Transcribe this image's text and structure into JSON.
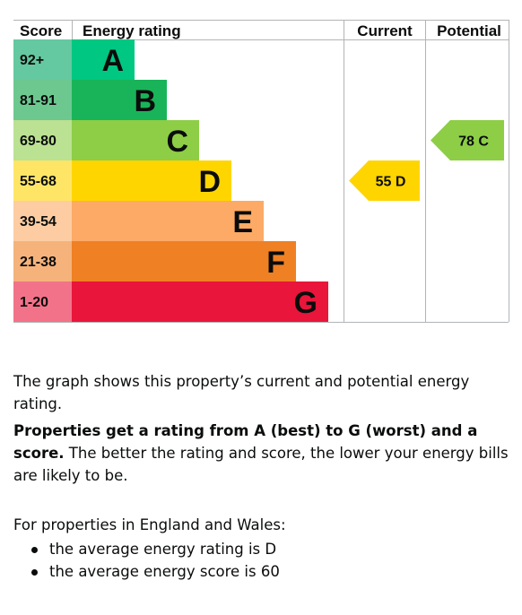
{
  "chart_data": {
    "type": "bar",
    "headers": {
      "score": "Score",
      "rating": "Energy rating",
      "current": "Current",
      "potential": "Potential"
    },
    "bands": [
      {
        "letter": "A",
        "range": "92+",
        "color": "#00c781",
        "score_color": "#64c8a0"
      },
      {
        "letter": "B",
        "range": "81-91",
        "color": "#19b459",
        "score_color": "#6dc890"
      },
      {
        "letter": "C",
        "range": "69-80",
        "color": "#8dce46",
        "score_color": "#bbe192"
      },
      {
        "letter": "D",
        "range": "55-68",
        "color": "#ffd500",
        "score_color": "#ffe566"
      },
      {
        "letter": "E",
        "range": "39-54",
        "color": "#fcaa65",
        "score_color": "#fdcca3"
      },
      {
        "letter": "F",
        "range": "21-38",
        "color": "#ef8023",
        "score_color": "#f5b37b"
      },
      {
        "letter": "G",
        "range": "1-20",
        "color": "#e9153b",
        "score_color": "#f27389"
      }
    ],
    "current": {
      "score": 55,
      "letter": "D",
      "label": "55 D",
      "color": "#ffd500"
    },
    "potential": {
      "score": 78,
      "letter": "C",
      "label": "78 C",
      "color": "#8dce46"
    }
  },
  "text": {
    "p1": "The graph shows this property’s current and potential energy rating.",
    "p2_bold": "Properties get a rating from A (best) to G (worst) and a score.",
    "p2_rest": " The better the rating and score, the lower your energy bills are likely to be.",
    "p3": "For properties in England and Wales:",
    "list": [
      "the average energy rating is D",
      "the average energy score is 60"
    ]
  }
}
